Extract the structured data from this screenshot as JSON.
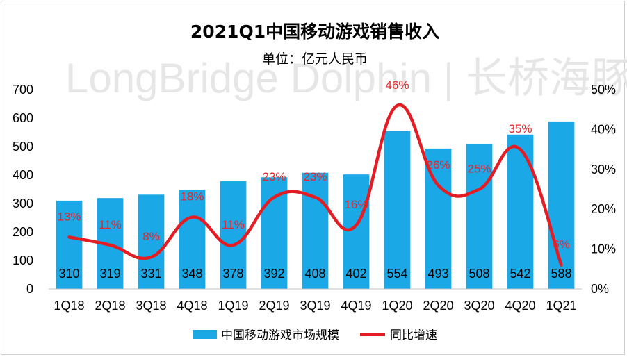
{
  "chart_data": {
    "type": "bar",
    "title": "2021Q1中国移动游戏销售收入",
    "subtitle": "单位：亿元人民币",
    "watermark": "LongBridge Dolphin | 长桥海豚投研",
    "categories": [
      "1Q18",
      "2Q18",
      "3Q18",
      "4Q18",
      "1Q19",
      "2Q19",
      "3Q19",
      "4Q19",
      "1Q20",
      "2Q20",
      "3Q20",
      "4Q20",
      "1Q21"
    ],
    "series": [
      {
        "name": "中国移动游戏市场规模",
        "type": "bar",
        "axis": "left",
        "color": "#1aa8e6",
        "values": [
          310,
          319,
          331,
          348,
          378,
          392,
          408,
          402,
          554,
          493,
          508,
          542,
          588
        ],
        "labels": [
          "310",
          "319",
          "331",
          "348",
          "378",
          "392",
          "408",
          "402",
          "554",
          "493",
          "508",
          "542",
          "588"
        ]
      },
      {
        "name": "同比增速",
        "type": "line",
        "axis": "right",
        "color": "#e41d24",
        "values": [
          13,
          11,
          8,
          18,
          11,
          23,
          23,
          16,
          46,
          26,
          25,
          35,
          6
        ],
        "labels": [
          "13%",
          "11%",
          "8%",
          "18%",
          "11%",
          "23%",
          "23%",
          "16%",
          "46%",
          "26%",
          "25%",
          "35%",
          "6%"
        ]
      }
    ],
    "y_left": {
      "min": 0,
      "max": 700,
      "ticks": [
        "0",
        "100",
        "200",
        "300",
        "400",
        "500",
        "600",
        "700"
      ]
    },
    "y_right": {
      "min": 0,
      "max": 50,
      "ticks": [
        "0%",
        "10%",
        "20%",
        "30%",
        "40%",
        "50%"
      ]
    },
    "legend": [
      "中国移动游戏市场规模",
      "同比增速"
    ]
  }
}
